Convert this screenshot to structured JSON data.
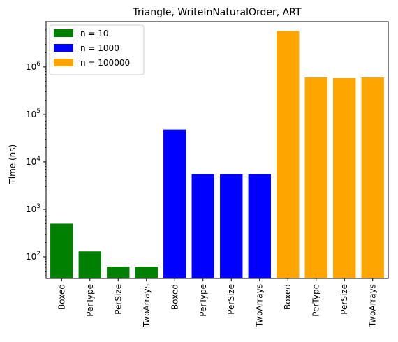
{
  "chart_data": {
    "type": "bar",
    "title": "Triangle, WriteInNaturalOrder, ART",
    "xlabel": "",
    "ylabel": "Time (ns)",
    "yscale": "log",
    "ylim": [
      35,
      9000000
    ],
    "yticks": [
      {
        "value": 100,
        "base": "10",
        "exp": "2"
      },
      {
        "value": 1000,
        "base": "10",
        "exp": "3"
      },
      {
        "value": 10000,
        "base": "10",
        "exp": "4"
      },
      {
        "value": 100000,
        "base": "10",
        "exp": "5"
      },
      {
        "value": 1000000,
        "base": "10",
        "exp": "6"
      }
    ],
    "legend_position": "top-left",
    "series": [
      {
        "name": "n = 10",
        "color": "#008000",
        "categories": [
          "Boxed",
          "PerType",
          "PerSize",
          "TwoArrays"
        ],
        "values": [
          500,
          130,
          62,
          62
        ]
      },
      {
        "name": "n = 1000",
        "color": "#0000ff",
        "categories": [
          "Boxed",
          "PerType",
          "PerSize",
          "TwoArrays"
        ],
        "values": [
          48000,
          5500,
          5500,
          5500
        ]
      },
      {
        "name": "n = 100000",
        "color": "#ffa500",
        "categories": [
          "Boxed",
          "PerType",
          "PerSize",
          "TwoArrays"
        ],
        "values": [
          5700000,
          600000,
          580000,
          600000
        ]
      }
    ]
  }
}
